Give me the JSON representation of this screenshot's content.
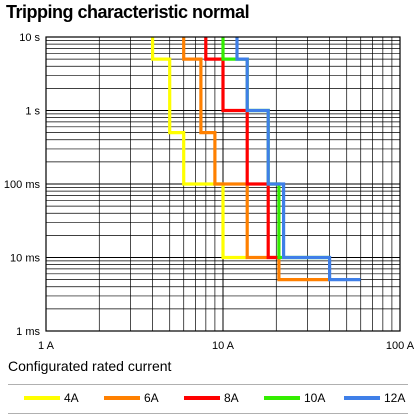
{
  "title": "Tripping characteristic normal",
  "legend_title": "Configurated rated current",
  "chart_data": {
    "type": "line",
    "title": "Tripping characteristic normal",
    "xscale": "log",
    "yscale": "log",
    "xlim": [
      1,
      100
    ],
    "ylim": [
      0.001,
      10
    ],
    "xticks": [
      {
        "value": 1,
        "label": "1 A"
      },
      {
        "value": 10,
        "label": "10 A"
      },
      {
        "value": 100,
        "label": "100 A"
      }
    ],
    "yticks": [
      {
        "value": 10,
        "label": "10 s"
      },
      {
        "value": 1,
        "label": "1 s"
      },
      {
        "value": 0.1,
        "label": "100 ms"
      },
      {
        "value": 0.01,
        "label": "10 ms"
      },
      {
        "value": 0.001,
        "label": "1 ms"
      }
    ],
    "grid": true,
    "legend_position": "bottom",
    "series": [
      {
        "name": "4A",
        "color": "#ffff00",
        "x": [
          4,
          4,
          5,
          5,
          6,
          6,
          10,
          10,
          13.7
        ],
        "y": [
          10,
          5,
          5,
          0.5,
          0.5,
          0.1,
          0.1,
          0.01,
          0.01
        ]
      },
      {
        "name": "6A",
        "color": "#ff8000",
        "x": [
          6,
          6,
          7.5,
          7.5,
          9,
          9,
          13.7,
          13.7,
          20.7,
          20.7,
          40
        ],
        "y": [
          10,
          5,
          5,
          0.5,
          0.5,
          0.1,
          0.1,
          0.01,
          0.01,
          0.005,
          0.005
        ]
      },
      {
        "name": "8A",
        "color": "#ff0000",
        "x": [
          8,
          8,
          10,
          10,
          13.7,
          13.7,
          18,
          18,
          20.7
        ],
        "y": [
          10,
          5,
          5,
          1,
          1,
          0.1,
          0.1,
          0.01,
          0.01
        ]
      },
      {
        "name": "10A",
        "color": "#33ee00",
        "x": [
          10,
          10,
          13.7,
          13.7,
          18,
          18,
          20.7,
          20.7,
          40
        ],
        "y": [
          10,
          5,
          5,
          1,
          1,
          0.1,
          0.1,
          0.01,
          0.01
        ]
      },
      {
        "name": "12A",
        "color": "#3f7fe8",
        "x": [
          12,
          12,
          13.7,
          13.7,
          18,
          18,
          22,
          22,
          40,
          40,
          60
        ],
        "y": [
          10,
          5,
          5,
          1,
          1,
          0.1,
          0.1,
          0.01,
          0.01,
          0.005,
          0.005
        ]
      }
    ]
  }
}
